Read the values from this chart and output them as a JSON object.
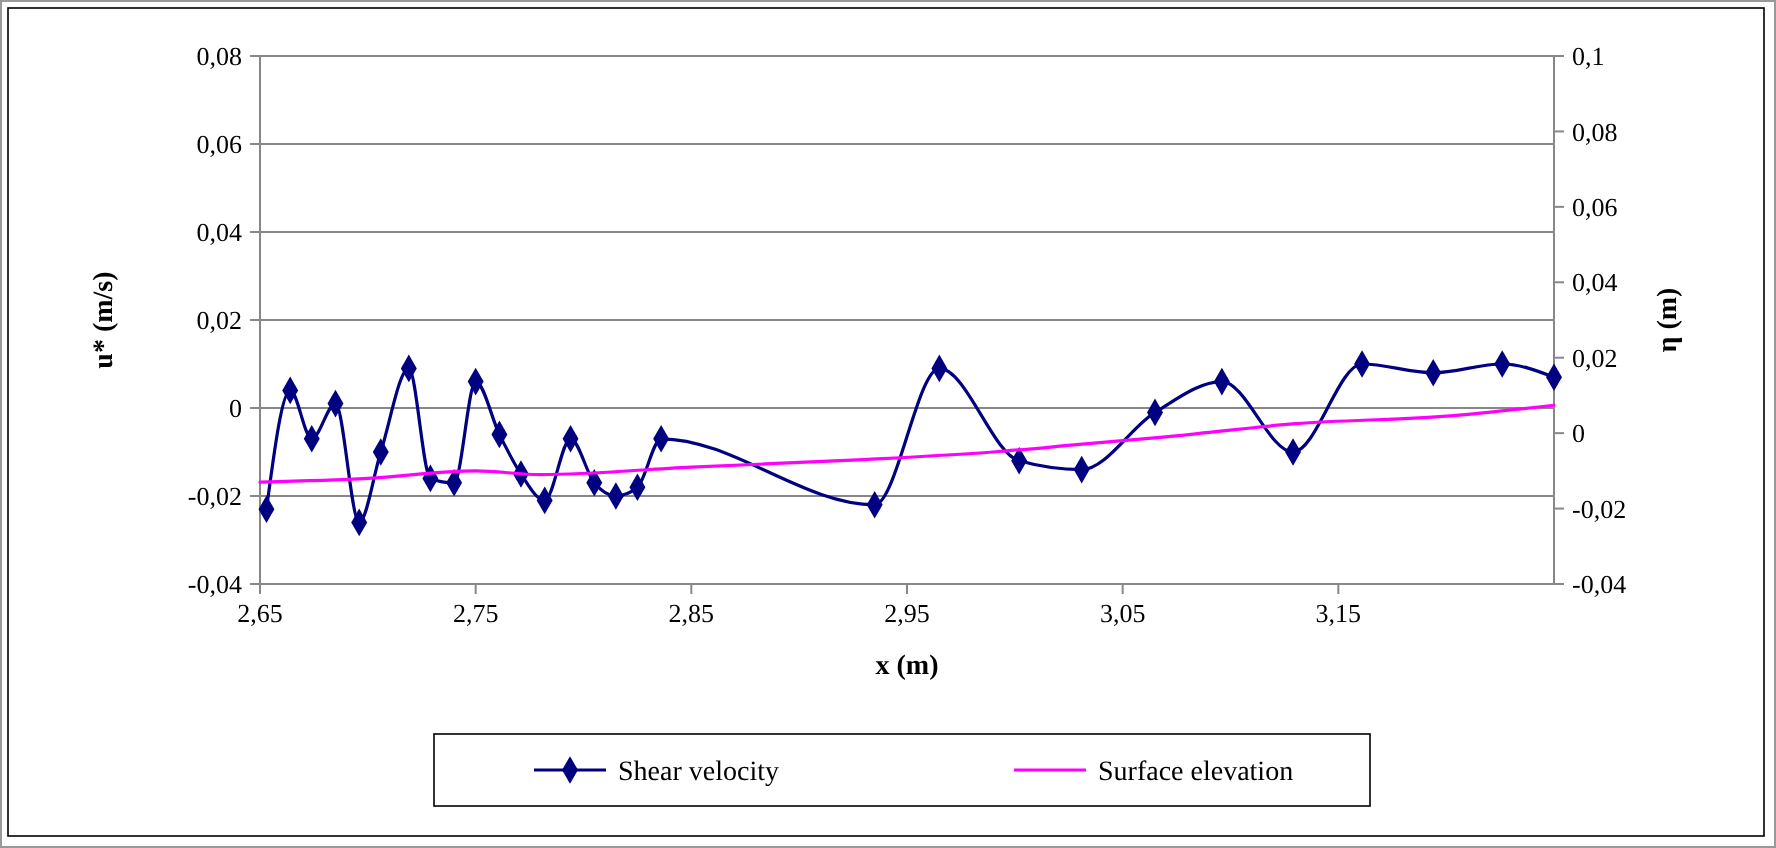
{
  "chart_data": {
    "type": "line",
    "xlabel": "x (m)",
    "ylabel": "u* (m/s)",
    "y2label": "η (m)",
    "xlim": [
      2.65,
      3.25
    ],
    "xticks": [
      {
        "value": 2.65,
        "label": "2,65"
      },
      {
        "value": 2.75,
        "label": "2,75"
      },
      {
        "value": 2.85,
        "label": "2,85"
      },
      {
        "value": 2.95,
        "label": "2,95"
      },
      {
        "value": 3.05,
        "label": "3,05"
      },
      {
        "value": 3.15,
        "label": "3,15"
      }
    ],
    "ylim": [
      -0.04,
      0.08
    ],
    "yticks": [
      {
        "value": -0.04,
        "label": "-0,04"
      },
      {
        "value": -0.02,
        "label": "-0,02"
      },
      {
        "value": 0,
        "label": "0"
      },
      {
        "value": 0.02,
        "label": "0,02"
      },
      {
        "value": 0.04,
        "label": "0,04"
      },
      {
        "value": 0.06,
        "label": "0,06"
      },
      {
        "value": 0.08,
        "label": "0,08"
      }
    ],
    "y2lim": [
      -0.04,
      0.1
    ],
    "y2ticks": [
      {
        "value": -0.04,
        "label": "-0,04"
      },
      {
        "value": -0.02,
        "label": "-0,02"
      },
      {
        "value": 0,
        "label": "0"
      },
      {
        "value": 0.02,
        "label": "0,02"
      },
      {
        "value": 0.04,
        "label": "0,04"
      },
      {
        "value": 0.06,
        "label": "0,06"
      },
      {
        "value": 0.08,
        "label": "0,08"
      },
      {
        "value": 0.1,
        "label": "0,1"
      }
    ],
    "grid": "y",
    "legend": "bottom",
    "series": [
      {
        "name": "Shear velocity",
        "color": "#000080",
        "marker": "diamond",
        "x": [
          2.653,
          2.664,
          2.674,
          2.685,
          2.696,
          2.706,
          2.719,
          2.729,
          2.74,
          2.75,
          2.761,
          2.771,
          2.782,
          2.794,
          2.805,
          2.815,
          2.825,
          2.836,
          2.935,
          2.965,
          3.002,
          3.031,
          3.065,
          3.096,
          3.129,
          3.161,
          3.194,
          3.226,
          3.25
        ],
        "values": [
          -0.023,
          0.004,
          -0.007,
          0.001,
          -0.026,
          -0.01,
          0.009,
          -0.016,
          -0.017,
          0.006,
          -0.006,
          -0.015,
          -0.021,
          -0.007,
          -0.017,
          -0.02,
          -0.018,
          -0.007,
          -0.022,
          0.009,
          -0.012,
          -0.014,
          -0.001,
          0.006,
          -0.01,
          0.01,
          0.008,
          0.01,
          0.007
        ]
      },
      {
        "name": "Surface elevation",
        "color": "#ff00ff",
        "marker": "none",
        "axis": "y2",
        "x": [
          2.65,
          2.7,
          2.75,
          2.78,
          2.85,
          2.93,
          2.99,
          3.03,
          3.07,
          3.13,
          3.2,
          3.25
        ],
        "values": [
          -0.013,
          -0.012,
          -0.01,
          -0.011,
          -0.009,
          -0.007,
          -0.005,
          -0.003,
          -0.001,
          0.0025,
          0.0045,
          0.0074
        ]
      }
    ]
  }
}
